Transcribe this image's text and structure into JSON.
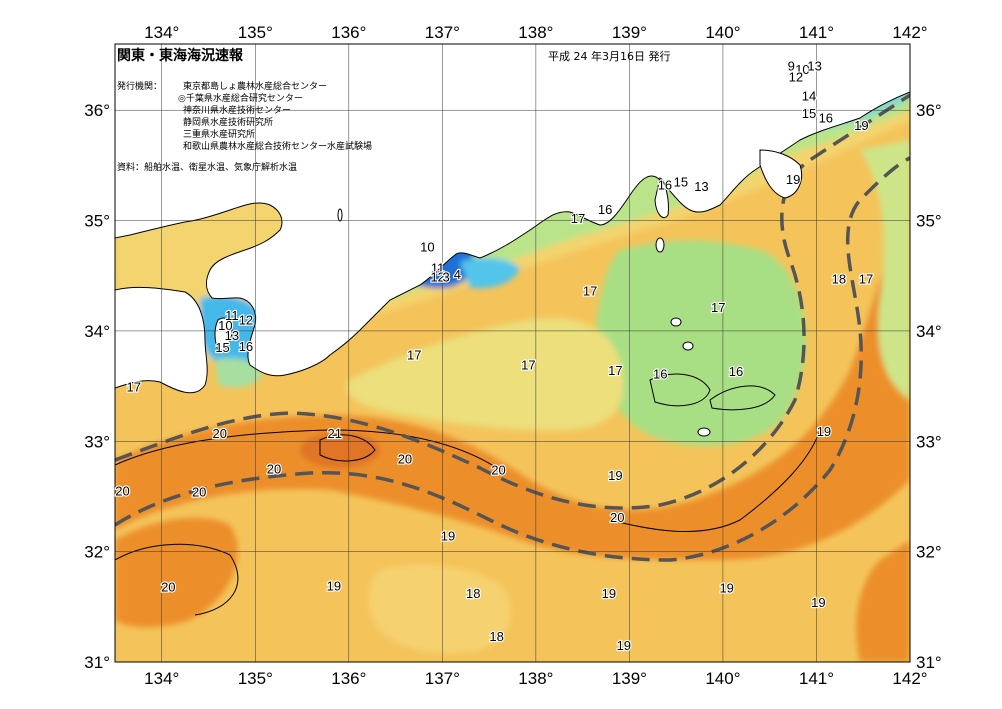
{
  "map": {
    "title": "関東・東海海況速報",
    "issue_date": "平成 24 年3月16日 発行",
    "issuing_label": "発行機関：",
    "issuers": [
      "東京都島しょ農林水産総合センター",
      "◎千葉県水産総合研究センター",
      "神奈川県水産技術センター",
      "静岡県水産技術研究所",
      "三重県水産研究所",
      "和歌山県農林水産総合技術センター水産試験場"
    ],
    "source": "資料：船舶水温、衛星水温、気象庁解析水温",
    "lon_ticks": [
      "134°",
      "135°",
      "136°",
      "137°",
      "138°",
      "139°",
      "140°",
      "141°",
      "142°"
    ],
    "lat_ticks": [
      "36°",
      "35°",
      "34°",
      "33°",
      "32°",
      "31°"
    ],
    "isotherm_labels": [
      {
        "text": "9",
        "lon": 140.73,
        "lat": 36.36
      },
      {
        "text": "10",
        "lon": 140.85,
        "lat": 36.33
      },
      {
        "text": "12",
        "lon": 140.78,
        "lat": 36.26
      },
      {
        "text": "13",
        "lon": 140.98,
        "lat": 36.36
      },
      {
        "text": "14",
        "lon": 140.92,
        "lat": 36.09
      },
      {
        "text": "15",
        "lon": 140.92,
        "lat": 35.93
      },
      {
        "text": "16",
        "lon": 141.1,
        "lat": 35.89
      },
      {
        "text": "19",
        "lon": 141.48,
        "lat": 35.82
      },
      {
        "text": "19",
        "lon": 140.75,
        "lat": 35.33
      },
      {
        "text": "16",
        "lon": 139.38,
        "lat": 35.28
      },
      {
        "text": "15",
        "lon": 139.55,
        "lat": 35.31
      },
      {
        "text": "13",
        "lon": 139.77,
        "lat": 35.27
      },
      {
        "text": "17",
        "lon": 138.45,
        "lat": 34.98
      },
      {
        "text": "16",
        "lon": 138.74,
        "lat": 35.06
      },
      {
        "text": "10",
        "lon": 136.84,
        "lat": 34.72
      },
      {
        "text": "11",
        "lon": 136.95,
        "lat": 34.53
      },
      {
        "text": "12",
        "lon": 136.95,
        "lat": 34.45
      },
      {
        "text": "3",
        "lon": 137.04,
        "lat": 34.45
      },
      {
        "text": "4",
        "lon": 137.16,
        "lat": 34.47
      },
      {
        "text": "11",
        "lon": 134.75,
        "lat": 34.1
      },
      {
        "text": "12",
        "lon": 134.9,
        "lat": 34.06
      },
      {
        "text": "10",
        "lon": 134.68,
        "lat": 34.01
      },
      {
        "text": "13",
        "lon": 134.75,
        "lat": 33.92
      },
      {
        "text": "15",
        "lon": 134.65,
        "lat": 33.81
      },
      {
        "text": "16",
        "lon": 134.9,
        "lat": 33.82
      },
      {
        "text": "17",
        "lon": 138.58,
        "lat": 34.32
      },
      {
        "text": "17",
        "lon": 139.95,
        "lat": 34.17
      },
      {
        "text": "18",
        "lon": 141.24,
        "lat": 34.43
      },
      {
        "text": "17",
        "lon": 141.53,
        "lat": 34.43
      },
      {
        "text": "17",
        "lon": 136.7,
        "lat": 33.74
      },
      {
        "text": "17",
        "lon": 137.92,
        "lat": 33.65
      },
      {
        "text": "17",
        "lon": 138.85,
        "lat": 33.6
      },
      {
        "text": "16",
        "lon": 139.33,
        "lat": 33.57
      },
      {
        "text": "16",
        "lon": 140.14,
        "lat": 33.59
      },
      {
        "text": "17",
        "lon": 133.7,
        "lat": 33.45
      },
      {
        "text": "20",
        "lon": 134.62,
        "lat": 33.03
      },
      {
        "text": "21",
        "lon": 135.85,
        "lat": 33.03
      },
      {
        "text": "20",
        "lon": 136.6,
        "lat": 32.8
      },
      {
        "text": "20",
        "lon": 135.2,
        "lat": 32.71
      },
      {
        "text": "20",
        "lon": 137.6,
        "lat": 32.7
      },
      {
        "text": "19",
        "lon": 138.85,
        "lat": 32.65
      },
      {
        "text": "19",
        "lon": 141.08,
        "lat": 33.05
      },
      {
        "text": "20",
        "lon": 133.58,
        "lat": 32.51
      },
      {
        "text": "20",
        "lon": 134.4,
        "lat": 32.5
      },
      {
        "text": "20",
        "lon": 138.87,
        "lat": 32.27
      },
      {
        "text": "19",
        "lon": 137.06,
        "lat": 32.1
      },
      {
        "text": "20",
        "lon": 134.07,
        "lat": 31.64
      },
      {
        "text": "19",
        "lon": 135.84,
        "lat": 31.65
      },
      {
        "text": "18",
        "lon": 137.33,
        "lat": 31.58
      },
      {
        "text": "19",
        "lon": 138.78,
        "lat": 31.58
      },
      {
        "text": "19",
        "lon": 140.04,
        "lat": 31.63
      },
      {
        "text": "19",
        "lon": 141.02,
        "lat": 31.5
      },
      {
        "text": "18",
        "lon": 137.58,
        "lat": 31.19
      },
      {
        "text": "19",
        "lon": 138.94,
        "lat": 31.11
      }
    ]
  },
  "colors": {
    "land": "#ffffff",
    "sea_17": "#f3d46e",
    "sea_18": "#f4c45b",
    "sea_19": "#f1aa3f",
    "sea_20": "#ec8f2c",
    "sea_21": "#e07425",
    "sea_16": "#ace080",
    "sea_cold": "#86d9c8",
    "sea_15": "#3fb8e8",
    "sea_12": "#1f62d0",
    "current_line": "#555555"
  }
}
